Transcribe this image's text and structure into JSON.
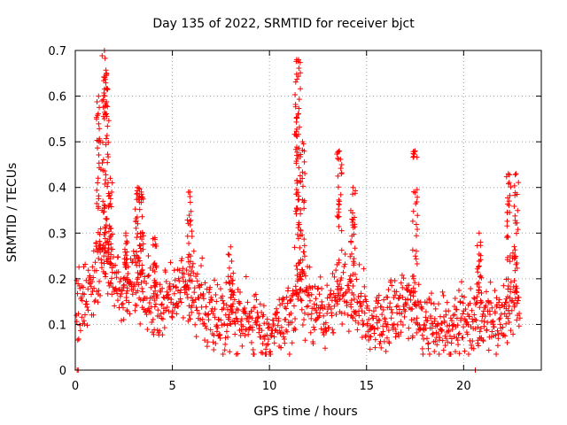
{
  "chart_data": {
    "type": "scatter",
    "title": "Day 135 of 2022, SRMTID for receiver bjct",
    "xlabel": "GPS time / hours",
    "ylabel": "SRMTID / TECUs",
    "xlim": [
      0,
      24
    ],
    "ylim": [
      0,
      0.7
    ],
    "xticks": [
      0,
      5,
      10,
      15,
      20
    ],
    "yticks": [
      0,
      0.1,
      0.2,
      0.3,
      0.4,
      0.5,
      0.6,
      0.7
    ],
    "grid": true,
    "marker": "+",
    "color": "#ff0000",
    "trend": [
      [
        0.0,
        0.13
      ],
      [
        0.5,
        0.15
      ],
      [
        1.0,
        0.22
      ],
      [
        1.5,
        0.25
      ],
      [
        2.0,
        0.2
      ],
      [
        2.5,
        0.15
      ],
      [
        3.0,
        0.2
      ],
      [
        3.5,
        0.18
      ],
      [
        4.0,
        0.14
      ],
      [
        5.0,
        0.15
      ],
      [
        5.5,
        0.19
      ],
      [
        6.0,
        0.17
      ],
      [
        7.0,
        0.12
      ],
      [
        8.0,
        0.12
      ],
      [
        9.0,
        0.11
      ],
      [
        10.0,
        0.08
      ],
      [
        11.0,
        0.11
      ],
      [
        11.5,
        0.18
      ],
      [
        12.0,
        0.15
      ],
      [
        13.0,
        0.11
      ],
      [
        13.5,
        0.16
      ],
      [
        14.0,
        0.18
      ],
      [
        14.5,
        0.15
      ],
      [
        15.0,
        0.11
      ],
      [
        16.0,
        0.11
      ],
      [
        17.0,
        0.15
      ],
      [
        17.5,
        0.13
      ],
      [
        18.0,
        0.1
      ],
      [
        19.0,
        0.09
      ],
      [
        20.0,
        0.11
      ],
      [
        21.0,
        0.12
      ],
      [
        22.0,
        0.11
      ],
      [
        22.5,
        0.16
      ],
      [
        23.0,
        0.13
      ]
    ],
    "spikes": [
      {
        "x": 1.2,
        "ymax": 0.6
      },
      {
        "x": 1.5,
        "ymax": 0.7
      },
      {
        "x": 1.6,
        "ymax": 0.65
      },
      {
        "x": 1.8,
        "ymax": 0.42
      },
      {
        "x": 2.6,
        "ymax": 0.3
      },
      {
        "x": 3.2,
        "ymax": 0.4
      },
      {
        "x": 3.4,
        "ymax": 0.39
      },
      {
        "x": 4.1,
        "ymax": 0.29
      },
      {
        "x": 5.9,
        "ymax": 0.39
      },
      {
        "x": 8.0,
        "ymax": 0.27
      },
      {
        "x": 11.4,
        "ymax": 0.68
      },
      {
        "x": 11.5,
        "ymax": 0.68
      },
      {
        "x": 11.7,
        "ymax": 0.5
      },
      {
        "x": 13.6,
        "ymax": 0.48
      },
      {
        "x": 14.3,
        "ymax": 0.4
      },
      {
        "x": 17.5,
        "ymax": 0.48
      },
      {
        "x": 20.8,
        "ymax": 0.3
      },
      {
        "x": 22.3,
        "ymax": 0.43
      },
      {
        "x": 22.7,
        "ymax": 0.43
      }
    ],
    "zero_points": [
      0.1,
      0.15,
      20.6
    ]
  }
}
